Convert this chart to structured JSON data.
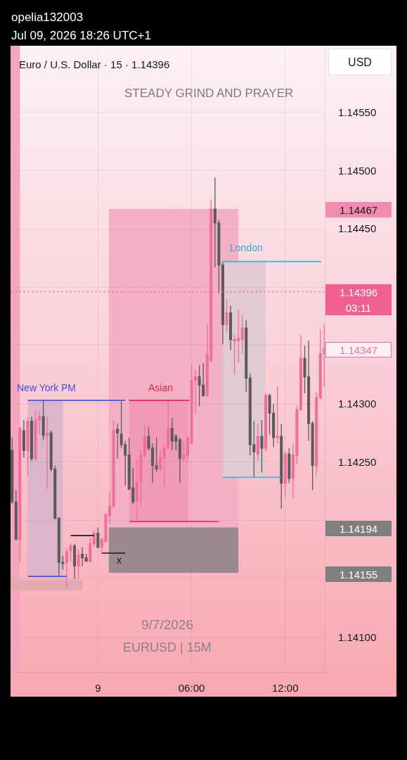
{
  "chart_data": {
    "type": "candlestick",
    "title": "Euro / U.S. Dollar · 15 · 1.14396",
    "subtitle": "STEADY GRIND AND PRAYER",
    "ylabel": "USD",
    "annotations": [
      "opelia132003",
      "Jul 09, 2026 18:26 UTC+1",
      "9/7/2026",
      "EURUSD | 15M",
      "New York PM",
      "Asian",
      "London",
      "x",
      "1.14467",
      "03:11",
      "1.14347",
      "1.14194",
      "1.14155"
    ],
    "x": [
      "2026-07-08T18:30",
      "2026-07-08T18:45",
      "2026-07-08T19:00",
      "2026-07-08T19:15",
      "2026-07-08T19:30",
      "2026-07-08T19:45",
      "2026-07-08T20:00",
      "2026-07-08T20:15",
      "2026-07-08T20:30",
      "2026-07-08T20:45",
      "2026-07-08T21:00",
      "2026-07-08T21:15",
      "2026-07-08T21:30",
      "2026-07-08T21:45",
      "2026-07-08T22:00",
      "2026-07-08T22:15",
      "2026-07-08T22:30",
      "2026-07-08T22:45",
      "2026-07-08T23:00",
      "2026-07-08T23:15",
      "2026-07-08T23:30",
      "2026-07-08T23:45",
      "2026-07-09T00:00",
      "2026-07-09T00:15",
      "2026-07-09T00:30",
      "2026-07-09T00:45",
      "2026-07-09T01:00",
      "2026-07-09T01:15",
      "2026-07-09T01:30",
      "2026-07-09T01:45",
      "2026-07-09T02:00",
      "2026-07-09T02:15",
      "2026-07-09T02:30",
      "2026-07-09T02:45",
      "2026-07-09T03:00",
      "2026-07-09T03:15",
      "2026-07-09T03:30",
      "2026-07-09T03:45",
      "2026-07-09T04:00",
      "2026-07-09T04:15",
      "2026-07-09T04:30",
      "2026-07-09T04:45",
      "2026-07-09T05:00",
      "2026-07-09T05:15",
      "2026-07-09T05:30",
      "2026-07-09T05:45",
      "2026-07-09T06:00",
      "2026-07-09T06:15",
      "2026-07-09T06:30",
      "2026-07-09T06:45",
      "2026-07-09T07:00",
      "2026-07-09T07:15",
      "2026-07-09T07:30",
      "2026-07-09T07:45",
      "2026-07-09T08:00",
      "2026-07-09T08:15",
      "2026-07-09T08:30",
      "2026-07-09T08:45",
      "2026-07-09T09:00",
      "2026-07-09T09:15",
      "2026-07-09T09:30",
      "2026-07-09T09:45",
      "2026-07-09T10:00",
      "2026-07-09T10:15",
      "2026-07-09T10:30",
      "2026-07-09T10:45",
      "2026-07-09T11:00",
      "2026-07-09T11:15",
      "2026-07-09T11:30",
      "2026-07-09T11:45",
      "2026-07-09T12:00",
      "2026-07-09T12:15",
      "2026-07-09T12:30",
      "2026-07-09T12:45",
      "2026-07-09T13:00",
      "2026-07-09T13:15",
      "2026-07-09T13:30",
      "2026-07-09T13:45",
      "2026-07-09T14:00",
      "2026-07-09T14:15",
      "2026-07-09T14:30"
    ],
    "ohlc": [
      [
        1.1426,
        1.14271,
        1.14214,
        1.14216
      ],
      [
        1.14216,
        1.14226,
        1.14183,
        1.14184
      ],
      [
        1.14184,
        1.1428,
        1.14164,
        1.14279
      ],
      [
        1.14277,
        1.14286,
        1.14254,
        1.1426
      ],
      [
        1.1426,
        1.14288,
        1.14238,
        1.14285
      ],
      [
        1.14285,
        1.14289,
        1.14251,
        1.14253
      ],
      [
        1.14253,
        1.14295,
        1.14251,
        1.14286
      ],
      [
        1.14286,
        1.14294,
        1.14274,
        1.14289
      ],
      [
        1.14289,
        1.14303,
        1.14269,
        1.14273
      ],
      [
        1.14273,
        1.14289,
        1.14227,
        1.14275
      ],
      [
        1.14275,
        1.14277,
        1.14242,
        1.14244
      ],
      [
        1.14244,
        1.14247,
        1.14201,
        1.14202
      ],
      [
        1.14202,
        1.14202,
        1.14152,
        1.14164
      ],
      [
        1.14164,
        1.1417,
        1.14158,
        1.14163
      ],
      [
        1.14164,
        1.14176,
        1.14142,
        1.14173
      ],
      [
        1.14174,
        1.1418,
        1.14165,
        1.14178
      ],
      [
        1.14178,
        1.1418,
        1.1415,
        1.14161
      ],
      [
        1.14161,
        1.14175,
        1.1415,
        1.1417
      ],
      [
        1.14171,
        1.14177,
        1.14161,
        1.14168
      ],
      [
        1.14168,
        1.14171,
        1.14165,
        1.14165
      ],
      [
        1.14165,
        1.14185,
        1.14164,
        1.1418
      ],
      [
        1.1418,
        1.14191,
        1.14177,
        1.14189
      ],
      [
        1.14189,
        1.14194,
        1.14176,
        1.14177
      ],
      [
        1.14177,
        1.14185,
        1.14172,
        1.14184
      ],
      [
        1.14182,
        1.14206,
        1.14181,
        1.14205
      ],
      [
        1.14204,
        1.14224,
        1.14197,
        1.14212
      ],
      [
        1.14212,
        1.14286,
        1.14211,
        1.14277
      ],
      [
        1.14278,
        1.14283,
        1.14253,
        1.14275
      ],
      [
        1.14274,
        1.14302,
        1.14262,
        1.14265
      ],
      [
        1.14265,
        1.14268,
        1.1423,
        1.14256
      ],
      [
        1.14256,
        1.14271,
        1.14226,
        1.14227
      ],
      [
        1.14228,
        1.14245,
        1.14214,
        1.14216
      ],
      [
        1.14217,
        1.14253,
        1.14199,
        1.14233
      ],
      [
        1.14233,
        1.1426,
        1.14212,
        1.14256
      ],
      [
        1.14256,
        1.14282,
        1.14254,
        1.14272
      ],
      [
        1.14272,
        1.1428,
        1.1426,
        1.14262
      ],
      [
        1.14262,
        1.14266,
        1.14232,
        1.14247
      ],
      [
        1.14247,
        1.14271,
        1.14242,
        1.14244
      ],
      [
        1.14244,
        1.1426,
        1.14242,
        1.14254
      ],
      [
        1.14254,
        1.14266,
        1.14229,
        1.14262
      ],
      [
        1.14262,
        1.14303,
        1.14262,
        1.14279
      ],
      [
        1.14279,
        1.14288,
        1.1426,
        1.14268
      ],
      [
        1.14272,
        1.14274,
        1.1426,
        1.14268
      ],
      [
        1.14269,
        1.14271,
        1.14232,
        1.14253
      ],
      [
        1.14253,
        1.14268,
        1.1425,
        1.14256
      ],
      [
        1.14256,
        1.14272,
        1.14251,
        1.14271
      ],
      [
        1.14266,
        1.14334,
        1.14265,
        1.1432
      ],
      [
        1.1432,
        1.14329,
        1.14291,
        1.14323
      ],
      [
        1.14323,
        1.14333,
        1.14298,
        1.14316
      ],
      [
        1.14316,
        1.14335,
        1.14306,
        1.14307
      ],
      [
        1.14307,
        1.14368,
        1.14306,
        1.14342
      ],
      [
        1.14337,
        1.14475,
        1.14336,
        1.14467
      ],
      [
        1.14467,
        1.14494,
        1.14417,
        1.14455
      ],
      [
        1.14455,
        1.14458,
        1.14395,
        1.14419
      ],
      [
        1.14419,
        1.14422,
        1.14351,
        1.14368
      ],
      [
        1.14368,
        1.1439,
        1.14361,
        1.14378
      ],
      [
        1.14378,
        1.14384,
        1.14346,
        1.14355
      ],
      [
        1.14354,
        1.14359,
        1.14325,
        1.14355
      ],
      [
        1.14354,
        1.14381,
        1.14335,
        1.14356
      ],
      [
        1.14355,
        1.14376,
        1.14343,
        1.14365
      ],
      [
        1.14365,
        1.14372,
        1.1431,
        1.14322
      ],
      [
        1.14322,
        1.14326,
        1.14256,
        1.14265
      ],
      [
        1.14265,
        1.14285,
        1.14237,
        1.14259
      ],
      [
        1.14257,
        1.14283,
        1.14251,
        1.14272
      ],
      [
        1.14272,
        1.14286,
        1.14241,
        1.14262
      ],
      [
        1.14262,
        1.14309,
        1.14259,
        1.14307
      ],
      [
        1.14307,
        1.14309,
        1.14274,
        1.14292
      ],
      [
        1.14292,
        1.143,
        1.14263,
        1.14271
      ],
      [
        1.14271,
        1.14315,
        1.14266,
        1.14272
      ],
      [
        1.14272,
        1.14283,
        1.1421,
        1.14232
      ],
      [
        1.14232,
        1.14259,
        1.1422,
        1.14257
      ],
      [
        1.14257,
        1.14262,
        1.14232,
        1.14236
      ],
      [
        1.14236,
        1.14266,
        1.14219,
        1.14256
      ],
      [
        1.14256,
        1.14298,
        1.14248,
        1.14295
      ],
      [
        1.14295,
        1.14359,
        1.14294,
        1.14339
      ],
      [
        1.14339,
        1.1435,
        1.14309,
        1.14323
      ],
      [
        1.14323,
        1.14354,
        1.14268,
        1.14283
      ],
      [
        1.14283,
        1.14285,
        1.14226,
        1.14247
      ],
      [
        1.14247,
        1.1431,
        1.14238,
        1.14305
      ],
      [
        1.14305,
        1.14364,
        1.14304,
        1.14343
      ],
      [
        1.14343,
        1.14368,
        1.14315,
        1.14347
      ]
    ],
    "colors": [
      "#5b5b5b",
      "#5b5b5b",
      "#ef6f9a",
      "#5b5b5b",
      "#ef6f9a",
      "#5b5b5b",
      "#ef6f9a",
      "#ef6f9a",
      "#5b5b5b",
      "#ef6f9a",
      "#5b5b5b",
      "#5b5b5b",
      "#5b5b5b",
      "#5b5b5b",
      "#ef6f9a",
      "#ef6f9a",
      "#5b5b5b",
      "#ef6f9a",
      "#5b5b5b",
      "#5b5b5b",
      "#ef6f9a",
      "#ef6f9a",
      "#5b5b5b",
      "#ef6f9a",
      "#ef6f9a",
      "#ef6f9a",
      "#ef6f9a",
      "#5b5b5b",
      "#5b5b5b",
      "#5b5b5b",
      "#5b5b5b",
      "#5b5b5b",
      "#ef6f9a",
      "#ef6f9a",
      "#ef6f9a",
      "#5b5b5b",
      "#5b5b5b",
      "#5b5b5b",
      "#ef6f9a",
      "#ef6f9a",
      "#ef6f9a",
      "#5b5b5b",
      "#5b5b5b",
      "#5b5b5b",
      "#ef6f9a",
      "#ef6f9a",
      "#ef6f9a",
      "#ef6f9a",
      "#5b5b5b",
      "#5b5b5b",
      "#ef6f9a",
      "#ef6f9a",
      "#5b5b5b",
      "#5b5b5b",
      "#5b5b5b",
      "#ef6f9a",
      "#5b5b5b",
      "#ef6f9a",
      "#ef6f9a",
      "#ef6f9a",
      "#5b5b5b",
      "#5b5b5b",
      "#5b5b5b",
      "#ef6f9a",
      "#5b5b5b",
      "#ef6f9a",
      "#5b5b5b",
      "#5b5b5b",
      "#ef6f9a",
      "#5b5b5b",
      "#ef6f9a",
      "#5b5b5b",
      "#ef6f9a",
      "#ef6f9a",
      "#ef6f9a",
      "#5b5b5b",
      "#5b5b5b",
      "#5b5b5b",
      "#ef6f9a",
      "#ef6f9a",
      "#ef6f9a"
    ],
    "series": [
      {
        "type": "line",
        "x": [
          "2026-07-09T00:42",
          "2026-07-09T09:00"
        ],
        "values": [
          null,
          null
        ],
        "lower": [
          1.14155,
          1.14155
        ],
        "upper": [
          1.14467,
          1.14467
        ],
        "color": "#f4b0c4"
      },
      {
        "type": "line",
        "x": [
          "2026-07-09T00:42",
          "2026-07-09T09:00"
        ],
        "values": [
          null,
          null
        ],
        "lower": [
          1.14155,
          1.14155
        ],
        "upper": [
          1.14194,
          1.14194
        ],
        "color": "#9a8a8f"
      },
      {
        "type": "line",
        "x": [
          "2026-07-09T02:00",
          "2026-07-09T05:48"
        ],
        "values": [
          null,
          null
        ],
        "lower": [
          1.14199,
          1.14199
        ],
        "upper": [
          1.14303,
          1.14303
        ],
        "color": "#f29bb7"
      },
      {
        "type": "line",
        "x": [
          "2026-07-08T19:30",
          "2026-07-08T21:45"
        ],
        "values": [
          null,
          null
        ],
        "lower": [
          1.14152,
          1.14152
        ],
        "upper": [
          1.14303,
          1.14303
        ],
        "color": "#dcb5cb"
      },
      {
        "type": "line",
        "x": [
          "2026-07-09T08:00",
          "2026-07-09T10:45"
        ],
        "values": [
          null,
          null
        ],
        "lower": [
          1.14237,
          1.14237
        ],
        "upper": [
          1.14422,
          1.14422
        ],
        "color": "#e2cad3"
      },
      {
        "type": "line",
        "x": [
          "2026-07-08T18:24",
          "2026-07-08T23:00"
        ],
        "values": [
          null,
          null
        ],
        "lower": [
          1.1414,
          1.1414
        ],
        "upper": [
          1.14149,
          1.14149
        ],
        "color": "#e2aab0"
      },
      {
        "type": "line",
        "x": [
          "2026-07-08T19:30",
          "2026-07-09T01:45"
        ],
        "values": [
          1.14303,
          1.14303
        ],
        "color": "#4356e8"
      },
      {
        "type": "line",
        "x": [
          "2026-07-08T19:30",
          "2026-07-08T22:00"
        ],
        "values": [
          1.14152,
          1.14152
        ],
        "color": "#4356e8"
      },
      {
        "type": "line",
        "x": [
          "2026-07-09T02:00",
          "2026-07-09T05:52"
        ],
        "values": [
          1.14303,
          1.14303
        ],
        "color": "#e0245e"
      },
      {
        "type": "line",
        "x": [
          "2026-07-09T02:00",
          "2026-07-09T07:45"
        ],
        "values": [
          1.14199,
          1.14199
        ],
        "color": "#e0245e"
      },
      {
        "type": "line",
        "x": [
          "2026-07-09T08:00",
          "2026-07-09T14:18"
        ],
        "values": [
          1.14422,
          1.14422
        ],
        "color": "#36b3d3"
      },
      {
        "type": "line",
        "x": [
          "2026-07-09T08:00",
          "2026-07-09T11:45"
        ],
        "values": [
          1.14237,
          1.14237
        ],
        "color": "#36b3d3"
      },
      {
        "type": "line",
        "x": [
          "2026-07-08T22:15",
          "2026-07-08T23:45"
        ],
        "values": [
          1.14187,
          1.14187
        ],
        "color": "#1a1a1a"
      },
      {
        "type": "line",
        "x": [
          "2026-07-09T00:15",
          "2026-07-09T01:45"
        ],
        "values": [
          1.14172,
          1.14172
        ],
        "color": "#1a1a1a"
      }
    ],
    "ref_lines": [
      {
        "axis": "y",
        "value": 1.14396,
        "label": "1.14396",
        "color": "#ef5f8f",
        "line_style": "dotted"
      }
    ],
    "bands": [
      {
        "axis": "x",
        "from": "2026-07-08T18:24",
        "to": "2026-07-08T19:00",
        "color": "#f5a6be"
      }
    ],
    "xlim": [
      "2026-07-08T18:24",
      "2026-07-09T14:32"
    ],
    "ylim": [
      1.1407,
      1.14607
    ],
    "xticks": [
      {
        "value": "2026-07-09T00:00",
        "label": "9"
      },
      {
        "value": "2026-07-09T06:00",
        "label": "06:00"
      },
      {
        "value": "2026-07-09T12:00",
        "label": "12:00"
      }
    ],
    "yticks": [
      {
        "value": 1.1455,
        "label": "1.14550"
      },
      {
        "value": 1.145,
        "label": "1.14500"
      },
      {
        "value": 1.1445,
        "label": "1.14450"
      },
      {
        "value": 1.144,
        "label": null
      },
      {
        "value": 1.1435,
        "label": null
      },
      {
        "value": 1.143,
        "label": "1.14300"
      },
      {
        "value": 1.1425,
        "label": "1.14250"
      },
      {
        "value": 1.142,
        "label": null
      },
      {
        "value": 1.1415,
        "label": null
      },
      {
        "value": 1.141,
        "label": "1.14100"
      }
    ],
    "grid": true
  }
}
